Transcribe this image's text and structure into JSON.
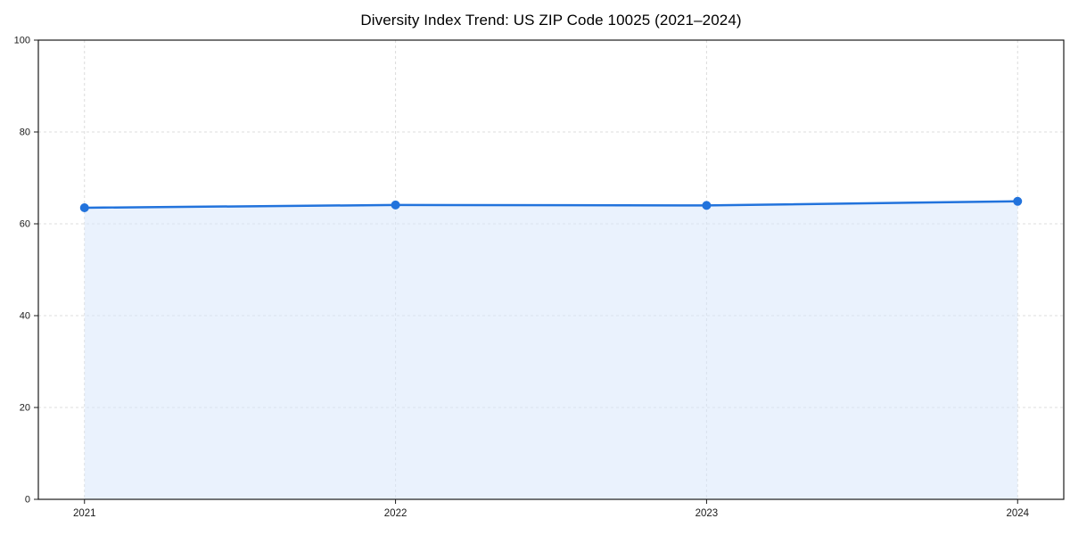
{
  "chart_data": {
    "type": "area",
    "title": "Diversity Index Trend: US ZIP Code 10025 (2021–2024)",
    "categories": [
      "2021",
      "2022",
      "2023",
      "2024"
    ],
    "series": [
      {
        "name": "Diversity Index",
        "values": [
          63.5,
          64.1,
          64.0,
          64.9
        ]
      }
    ],
    "xlabel": "",
    "ylabel": "",
    "ylim": [
      0,
      100
    ],
    "yticks": [
      0,
      20,
      40,
      60,
      80,
      100
    ],
    "grid": true,
    "grid_style": "dashed",
    "legend": "none",
    "line_color": "#2273dc",
    "marker": "circle",
    "marker_color": "#2273dc",
    "fill_color": "#d9e8fb",
    "fill_opacity": 0.55,
    "grid_color": "#dcdcdc",
    "axis_color": "#1a1a1a",
    "tick_label_color": "#1a1a1a",
    "background_color": "#ffffff"
  }
}
